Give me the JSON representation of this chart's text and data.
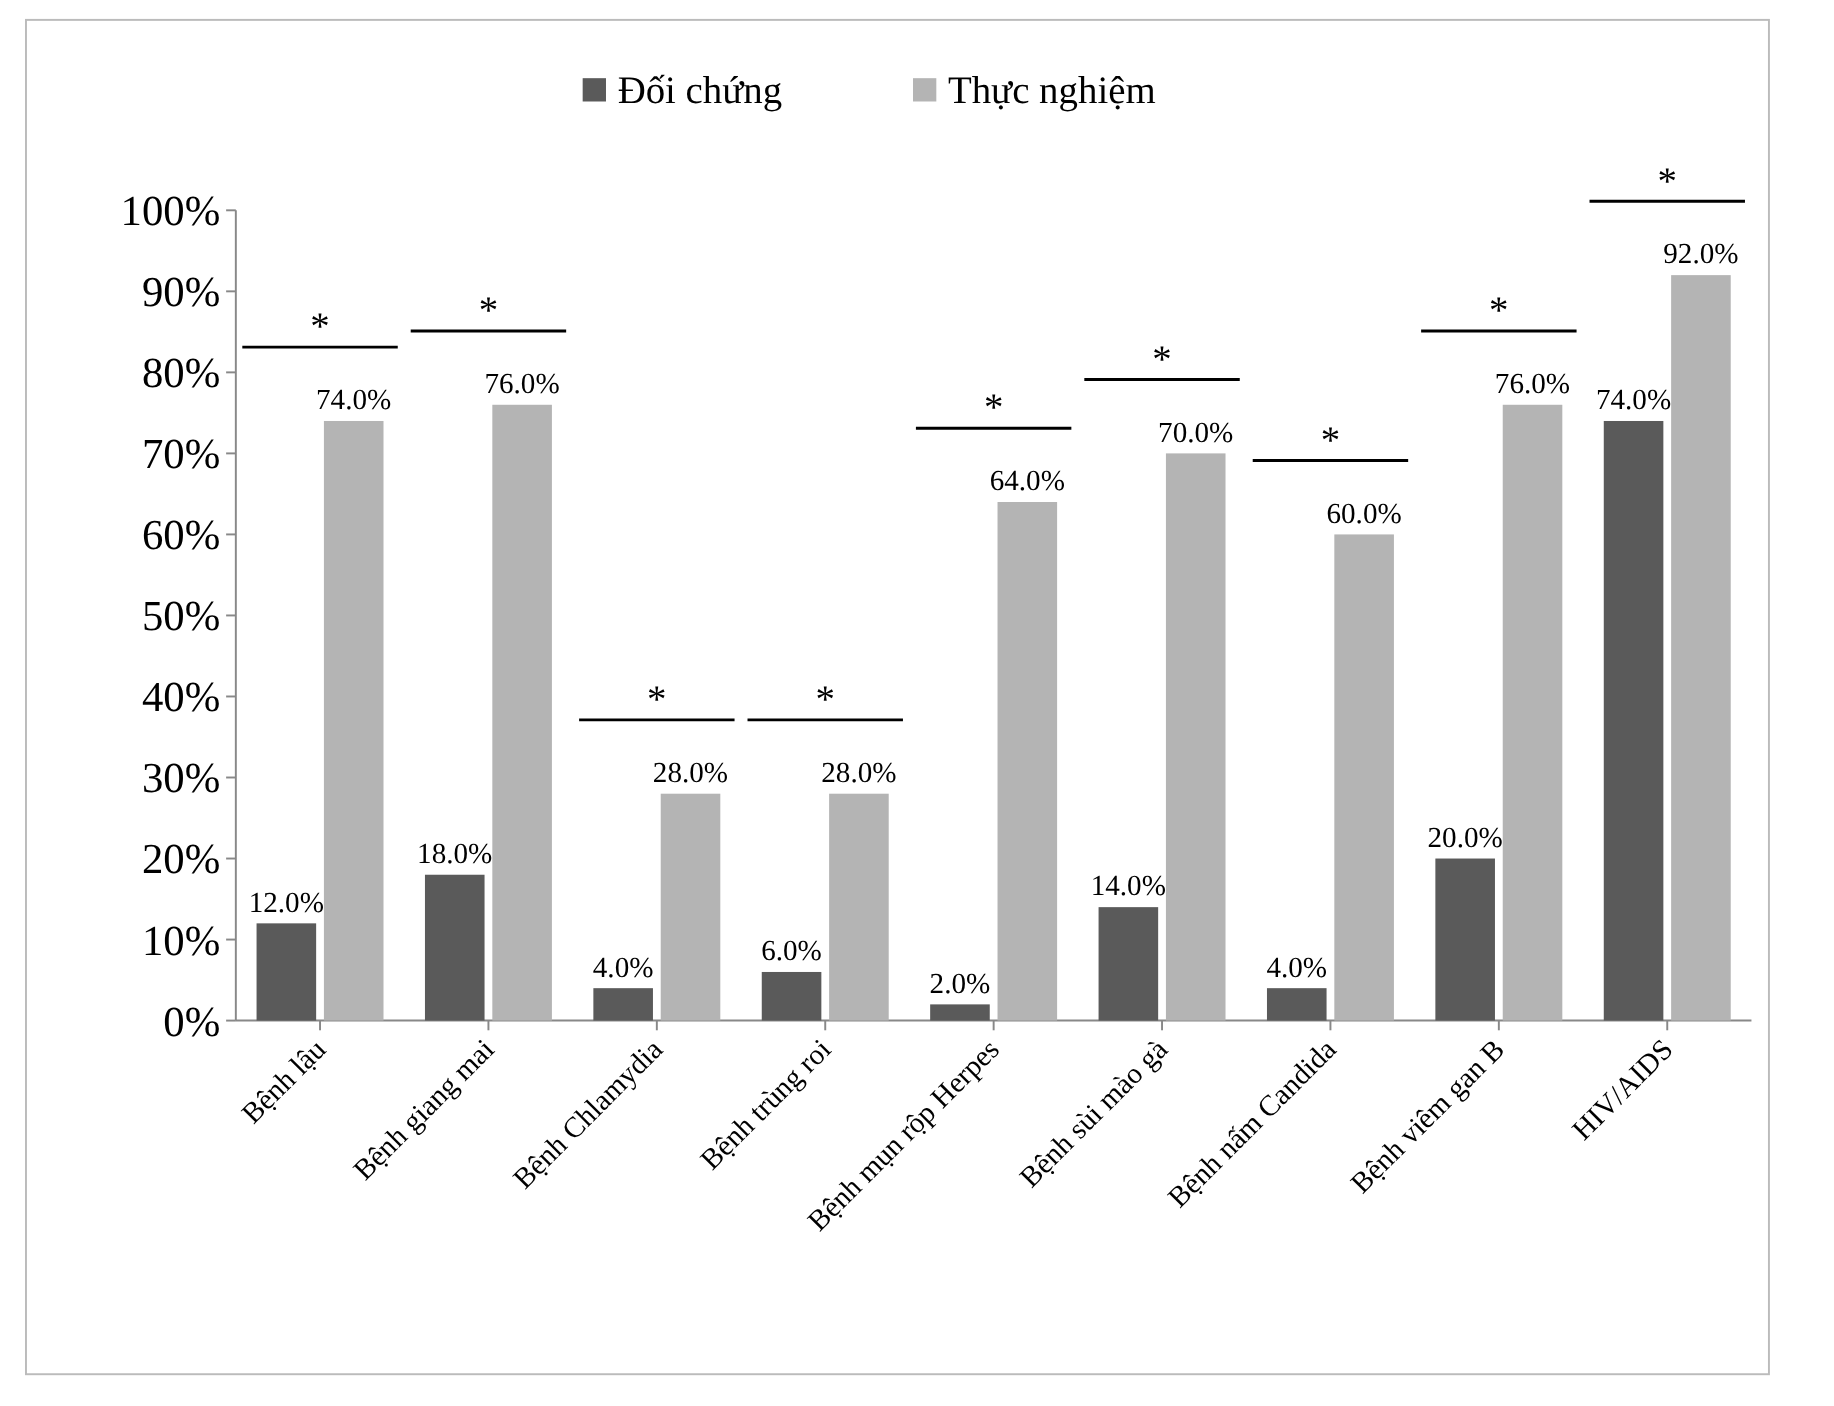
{
  "chart_data": {
    "type": "bar",
    "categories": [
      "Bệnh lậu",
      "Bệnh giang mai",
      "Bệnh Chlamydia",
      "Bệnh trùng roi",
      "Bệnh mụn rộp Herpes",
      "Bệnh sùi mào gà",
      "Bệnh nấm Candida",
      "Bệnh viêm gan B",
      "HIV/AIDS"
    ],
    "series": [
      {
        "name": "Đối chứng",
        "color": "#5a5a5a",
        "values": [
          12,
          18,
          4,
          6,
          2,
          14,
          4,
          20,
          74
        ],
        "value_labels": [
          "12.0%",
          "18.0%",
          "4.0%",
          "6.0%",
          "2.0%",
          "14.0%",
          "4.0%",
          "20.0%",
          "74.0%"
        ]
      },
      {
        "name": "Thực nghiệm",
        "color": "#b4b4b4",
        "values": [
          74,
          76,
          28,
          28,
          64,
          70,
          60,
          76,
          92
        ],
        "value_labels": [
          "74.0%",
          "76.0%",
          "28.0%",
          "28.0%",
          "64.0%",
          "70.0%",
          "60.0%",
          "76.0%",
          "92.0%"
        ]
      }
    ],
    "ylim": [
      0,
      100
    ],
    "yticks": [
      {
        "value": 0,
        "label": "0%"
      },
      {
        "value": 10,
        "label": "10%"
      },
      {
        "value": 20,
        "label": "20%"
      },
      {
        "value": 30,
        "label": "30%"
      },
      {
        "value": 40,
        "label": "40%"
      },
      {
        "value": 50,
        "label": "50%"
      },
      {
        "value": 60,
        "label": "60%"
      },
      {
        "value": 70,
        "label": "70%"
      },
      {
        "value": 80,
        "label": "80%"
      },
      {
        "value": 90,
        "label": "90%"
      },
      {
        "value": 100,
        "label": "100%"
      }
    ],
    "annotations": [
      "*",
      "*",
      "*",
      "*",
      "*",
      "*",
      "*",
      "*",
      "*"
    ],
    "grid": false,
    "legend": "top"
  }
}
